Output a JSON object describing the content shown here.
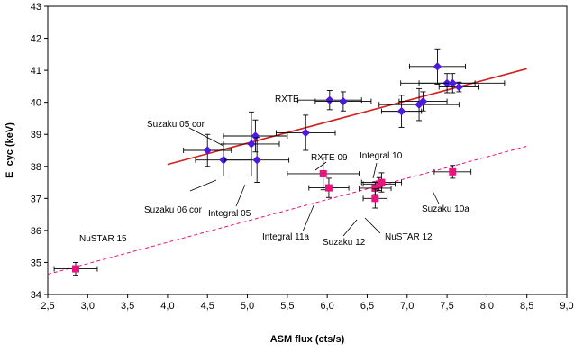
{
  "chart_data": {
    "type": "scatter",
    "title": "",
    "xlabel": "ASM flux  (cts/s)",
    "ylabel": "E_cyc (keV)",
    "xlim": [
      2.5,
      9.0
    ],
    "ylim": [
      34,
      43
    ],
    "x_ticks": [
      2.5,
      3.0,
      3.5,
      4.0,
      4.5,
      5.0,
      5.5,
      6.0,
      6.5,
      7.0,
      7.5,
      8.0,
      8.5,
      9.0
    ],
    "x_tick_labels": [
      "2,5",
      "3,0",
      "3,5",
      "4,0",
      "4,5",
      "5,0",
      "5,5",
      "6,0",
      "6,5",
      "7,0",
      "7,5",
      "8,0",
      "8,5",
      "9,0"
    ],
    "y_ticks": [
      34,
      35,
      36,
      37,
      38,
      39,
      40,
      41,
      42,
      43
    ],
    "y_tick_labels": [
      "34",
      "35",
      "36",
      "37",
      "38",
      "39",
      "40",
      "41",
      "42",
      "43"
    ],
    "grid": false,
    "colors": {
      "rxte": "#4b1be0",
      "other": "#e8147e",
      "fit_solid": "#d42020",
      "fit_dashed": "#e8147e"
    },
    "series": [
      {
        "marker": "diamond",
        "color": "#4b1be0",
        "points": [
          {
            "x": 4.5,
            "y": 38.5,
            "xerr": 0.3,
            "yerr": 0.5
          },
          {
            "x": 4.7,
            "y": 38.2,
            "xerr": 0.35,
            "yerr": 0.5
          },
          {
            "x": 5.05,
            "y": 38.7,
            "xerr": 0.35,
            "yerr": 1.0
          },
          {
            "x": 5.1,
            "y": 38.95,
            "xerr": 0.4,
            "yerr": 0.5
          },
          {
            "x": 5.12,
            "y": 38.2,
            "xerr": 0.4,
            "yerr": 0.7
          },
          {
            "x": 5.73,
            "y": 39.05,
            "xerr": 0.37,
            "yerr": 0.55
          },
          {
            "x": 6.03,
            "y": 40.07,
            "xerr": 0.4,
            "yerr": 0.3
          },
          {
            "x": 6.2,
            "y": 40.03,
            "xerr": 0.35,
            "yerr": 0.3
          },
          {
            "x": 6.93,
            "y": 39.72,
            "xerr": 0.25,
            "yerr": 0.5
          },
          {
            "x": 7.15,
            "y": 39.93,
            "xerr": 0.5,
            "yerr": 0.5
          },
          {
            "x": 7.2,
            "y": 40.03,
            "xerr": 0.3,
            "yerr": 0.3
          },
          {
            "x": 7.38,
            "y": 41.12,
            "xerr": 0.35,
            "yerr": 0.55
          },
          {
            "x": 7.5,
            "y": 40.6,
            "xerr": 0.35,
            "yerr": 0.3
          },
          {
            "x": 7.57,
            "y": 40.6,
            "xerr": 0.65,
            "yerr": 0.3
          },
          {
            "x": 7.65,
            "y": 40.48,
            "xerr": 0.25,
            "yerr": 0.15
          }
        ]
      },
      {
        "marker": "square",
        "color": "#e8147e",
        "points": [
          {
            "x": 2.85,
            "y": 34.8,
            "xerr": 0.27,
            "yerr": 0.2
          },
          {
            "x": 5.95,
            "y": 37.77,
            "xerr": 0.45,
            "yerr": 0.5
          },
          {
            "x": 6.02,
            "y": 37.33,
            "xerr": 0.25,
            "yerr": 0.3
          },
          {
            "x": 6.6,
            "y": 37.32,
            "xerr": 0.2,
            "yerr": 0.2
          },
          {
            "x": 6.6,
            "y": 37.0,
            "xerr": 0.15,
            "yerr": 0.3
          },
          {
            "x": 6.65,
            "y": 37.45,
            "xerr": 0.2,
            "yerr": 0.2
          },
          {
            "x": 6.68,
            "y": 37.5,
            "xerr": 0.25,
            "yerr": 0.3
          },
          {
            "x": 7.57,
            "y": 37.83,
            "xerr": 0.23,
            "yerr": 0.2
          }
        ]
      }
    ],
    "fit_lines": [
      {
        "style": "solid",
        "color": "#d42020",
        "x": [
          4.0,
          8.5
        ],
        "y": [
          38.06,
          41.05
        ]
      },
      {
        "style": "dashed",
        "color": "#e8147e",
        "x": [
          2.5,
          8.5
        ],
        "y": [
          34.63,
          38.63
        ]
      }
    ],
    "annotations": [
      {
        "text": "RXTE"
      },
      {
        "text": "Suzaku 05 cor"
      },
      {
        "text": "Suzaku 06 cor"
      },
      {
        "text": "Integral 05"
      },
      {
        "text": "RXTE 09"
      },
      {
        "text": "Integral 10"
      },
      {
        "text": "Integral  11a"
      },
      {
        "text": "Suzaku 12"
      },
      {
        "text": "NuSTAR 12"
      },
      {
        "text": "Suzaku 10a"
      },
      {
        "text": "NuSTAR 15"
      }
    ]
  }
}
